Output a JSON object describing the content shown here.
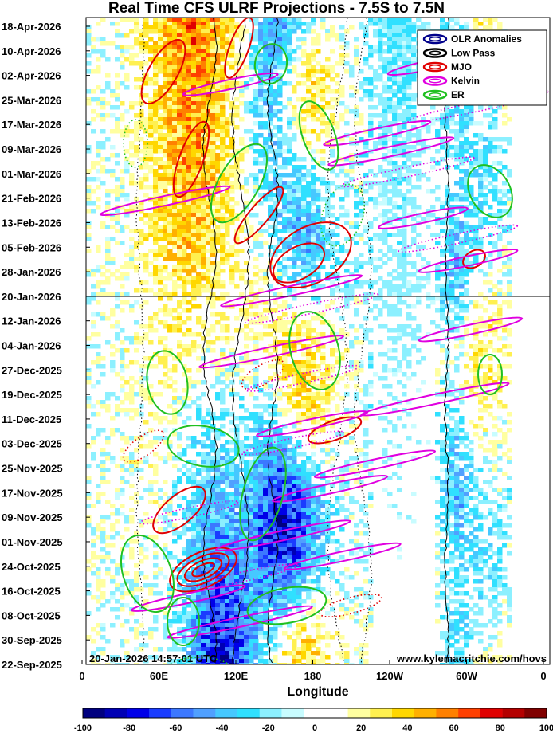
{
  "chart_data": {
    "type": "heatmap",
    "title": "Real Time CFS ULRF Projections - 7.5S to 7.5N",
    "xlabel": "Longitude",
    "x_ticks": [
      "0",
      "60E",
      "120E",
      "180",
      "120W",
      "60W",
      "0"
    ],
    "x_range_deg": [
      0,
      360
    ],
    "y_ticks": [
      "18-Apr-2026",
      "10-Apr-2026",
      "02-Apr-2026",
      "25-Mar-2026",
      "17-Mar-2026",
      "09-Mar-2026",
      "01-Mar-2026",
      "21-Feb-2026",
      "13-Feb-2026",
      "05-Feb-2026",
      "28-Jan-2026",
      "20-Jan-2026",
      "12-Jan-2026",
      "04-Jan-2026",
      "27-Dec-2025",
      "19-Dec-2025",
      "11-Dec-2025",
      "03-Dec-2025",
      "25-Nov-2025",
      "17-Nov-2025",
      "09-Nov-2025",
      "01-Nov-2025",
      "24-Oct-2025",
      "16-Oct-2025",
      "08-Oct-2025",
      "30-Sep-2025",
      "22-Sep-2025"
    ],
    "y_range": [
      "22-Sep-2025",
      "18-Apr-2026"
    ],
    "current_date_line": "20-Jan-2026",
    "timestamp": "20-Jan-2026 14:57:01 UTC",
    "credit": "www.kylemacritchie.com/hovs",
    "legend": {
      "placement": "top-right",
      "entries": [
        {
          "name": "OLR Anomalies",
          "color": "#00008b"
        },
        {
          "name": "Low Pass",
          "color": "#000000"
        },
        {
          "name": "MJO",
          "color": "#e00000"
        },
        {
          "name": "Kelvin",
          "color": "#e000e0"
        },
        {
          "name": "ER",
          "color": "#20c020"
        }
      ]
    },
    "colorbar": {
      "ticks": [
        "-100",
        "-80",
        "-60",
        "-40",
        "-20",
        "0",
        "20",
        "40",
        "60",
        "80",
        "100"
      ],
      "range": [
        -100,
        100
      ],
      "colors": [
        "#00007f",
        "#0000b4",
        "#0000e8",
        "#1a3cff",
        "#3c78ff",
        "#50a0ff",
        "#46c8ff",
        "#30e0ff",
        "#8cf0ff",
        "#c8fcff",
        "#ffffff",
        "#ffffff",
        "#ffffa0",
        "#fff050",
        "#ffd700",
        "#ffb000",
        "#ff8000",
        "#ff4000",
        "#e00000",
        "#b40000",
        "#800000"
      ]
    }
  }
}
